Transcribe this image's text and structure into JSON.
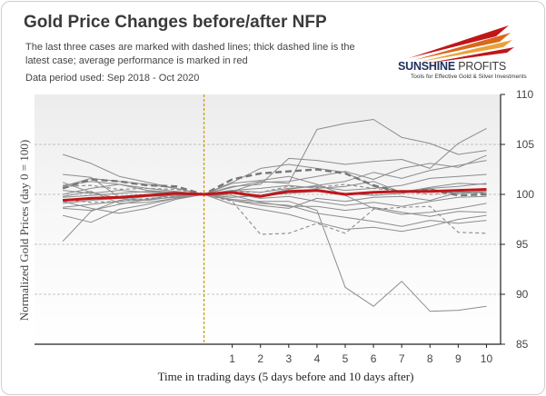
{
  "title": "Gold Price Changes before/after NFP",
  "subtitle": "The last three cases are marked with dashed lines; thick dashed line is the latest case; average performance is marked in red",
  "data_period": "Data period used: Sep 2018 - Oct 2020",
  "logo": {
    "name_bold": "SUNSHINE",
    "name_thin": "PROFITS",
    "tagline": "Tools for Effective Gold & Silver Investments"
  },
  "colors": {
    "series": "#8c8c8c",
    "average": "#c0161a",
    "nfp_marker": "#c8a000",
    "grid": "#b0b0b0"
  },
  "chart_data": {
    "type": "line",
    "xlabel": "Time in trading days  (5 days before and 10 days after)",
    "ylabel": "Normalized Gold Prices (day 0 = 100)",
    "x": [
      -5,
      -4,
      -3,
      -2,
      -1,
      0,
      1,
      2,
      3,
      4,
      5,
      6,
      7,
      8,
      9,
      10
    ],
    "x_tick_labels": [
      "1",
      "2",
      "3",
      "4",
      "5",
      "6",
      "7",
      "8",
      "9",
      "10"
    ],
    "xlim": [
      -6,
      10.5
    ],
    "ylim": [
      85,
      110
    ],
    "y_ticks": [
      85,
      90,
      95,
      100,
      105,
      110
    ],
    "y_axis_side": "right",
    "grid": true,
    "event_marker_x": 0,
    "series": [
      {
        "values": [
          104.0,
          103.1,
          101.8,
          101.2,
          100.6,
          100.0,
          100.7,
          101.3,
          101.1,
          106.5,
          107.1,
          107.5,
          105.7,
          105.1,
          104.0,
          104.4
        ],
        "style": "solid"
      },
      {
        "values": [
          95.3,
          98.3,
          99.4,
          99.8,
          99.9,
          100.0,
          99.5,
          99.3,
          99.3,
          98.4,
          90.7,
          88.8,
          91.3,
          88.3,
          88.4,
          88.8
        ],
        "style": "solid"
      },
      {
        "values": [
          97.9,
          97.2,
          98.5,
          99.0,
          99.6,
          100.0,
          100.8,
          101.0,
          103.6,
          103.4,
          103.0,
          103.3,
          103.5,
          102.6,
          105.1,
          106.6
        ],
        "style": "solid"
      },
      {
        "values": [
          100.9,
          101.3,
          101.0,
          100.6,
          100.3,
          100.0,
          99.7,
          99.9,
          100.5,
          100.9,
          101.3,
          102.2,
          101.6,
          102.4,
          102.9,
          103.4
        ],
        "style": "solid"
      },
      {
        "values": [
          99.3,
          98.6,
          98.1,
          98.6,
          99.5,
          100.0,
          99.4,
          99.1,
          98.9,
          98.1,
          97.7,
          97.3,
          96.8,
          97.4,
          97.1,
          97.4
        ],
        "style": "solid"
      },
      {
        "values": [
          100.0,
          100.6,
          101.0,
          100.4,
          100.2,
          100.0,
          99.4,
          98.9,
          98.6,
          99.6,
          99.3,
          99.7,
          99.8,
          99.4,
          100.2,
          100.3
        ],
        "style": "solid"
      },
      {
        "values": [
          102.0,
          101.7,
          99.7,
          99.9,
          100.3,
          100.0,
          99.9,
          99.2,
          98.8,
          98.8,
          98.4,
          98.7,
          98.2,
          97.8,
          98.3,
          98.2
        ],
        "style": "solid"
      },
      {
        "values": [
          99.7,
          99.9,
          100.1,
          100.3,
          100.2,
          100.0,
          100.3,
          101.2,
          101.3,
          101.8,
          102.3,
          101.5,
          102.6,
          103.1,
          102.7,
          103.9
        ],
        "style": "solid"
      },
      {
        "values": [
          98.6,
          98.4,
          99.0,
          99.5,
          99.7,
          100.0,
          101.1,
          101.4,
          101.8,
          101.0,
          99.9,
          98.6,
          98.0,
          98.2,
          98.6,
          99.1
        ],
        "style": "solid"
      },
      {
        "values": [
          100.4,
          100.1,
          100.4,
          100.2,
          100.1,
          100.0,
          100.4,
          100.6,
          100.9,
          100.6,
          100.8,
          101.3,
          100.2,
          100.7,
          101.1,
          101.0
        ],
        "style": "solid"
      },
      {
        "values": [
          99.1,
          99.4,
          99.6,
          99.8,
          99.9,
          100.0,
          99.7,
          99.9,
          100.1,
          100.3,
          100.1,
          99.9,
          100.1,
          100.5,
          100.1,
          100.2
        ],
        "style": "solid"
      },
      {
        "values": [
          98.7,
          99.0,
          99.3,
          99.5,
          100.0,
          100.0,
          99.0,
          98.5,
          98.0,
          97.2,
          96.5,
          96.7,
          96.3,
          96.8,
          97.5,
          97.9
        ],
        "style": "solid"
      },
      {
        "values": [
          101.2,
          100.2,
          99.6,
          99.4,
          99.8,
          100.0,
          101.2,
          102.6,
          103.0,
          102.6,
          102.2,
          100.8,
          100.3,
          100.6,
          100.8,
          101.1
        ],
        "style": "solid"
      },
      {
        "values": [
          99.8,
          100.3,
          99.1,
          99.2,
          99.6,
          100.0,
          100.4,
          100.2,
          100.6,
          100.8,
          100.4,
          100.6,
          100.9,
          101.6,
          101.8,
          102.0
        ],
        "style": "solid"
      },
      {
        "values": [
          100.8,
          101.6,
          101.3,
          101.0,
          100.6,
          100.0,
          100.1,
          99.6,
          99.8,
          99.3,
          98.9,
          99.2,
          98.8,
          99.3,
          99.7,
          99.8
        ],
        "style": "solid"
      },
      {
        "values": [
          99.5,
          99.2,
          99.3,
          99.6,
          99.8,
          100.0,
          99.3,
          96.0,
          96.1,
          97.1,
          96.1,
          98.5,
          98.7,
          98.8,
          96.2,
          96.1
        ],
        "style": "dashed"
      },
      {
        "values": [
          100.8,
          100.9,
          100.5,
          100.6,
          100.5,
          100.0,
          100.3,
          100.2,
          100.8,
          100.7,
          101.0,
          100.6,
          100.3,
          100.0,
          100.2,
          100.1
        ],
        "style": "dashed"
      },
      {
        "values": [
          100.6,
          101.5,
          101.3,
          100.9,
          100.8,
          100.0,
          101.5,
          102.1,
          102.3,
          102.5,
          102.1,
          100.9,
          100.2,
          100.5,
          99.9,
          100.0
        ],
        "style": "thick-dashed"
      },
      {
        "name": "average",
        "values": [
          99.4,
          99.6,
          99.7,
          99.9,
          100.1,
          100.0,
          100.2,
          99.8,
          100.3,
          100.4,
          100.0,
          100.2,
          100.3,
          100.3,
          100.4,
          100.5
        ],
        "style": "average"
      }
    ]
  }
}
